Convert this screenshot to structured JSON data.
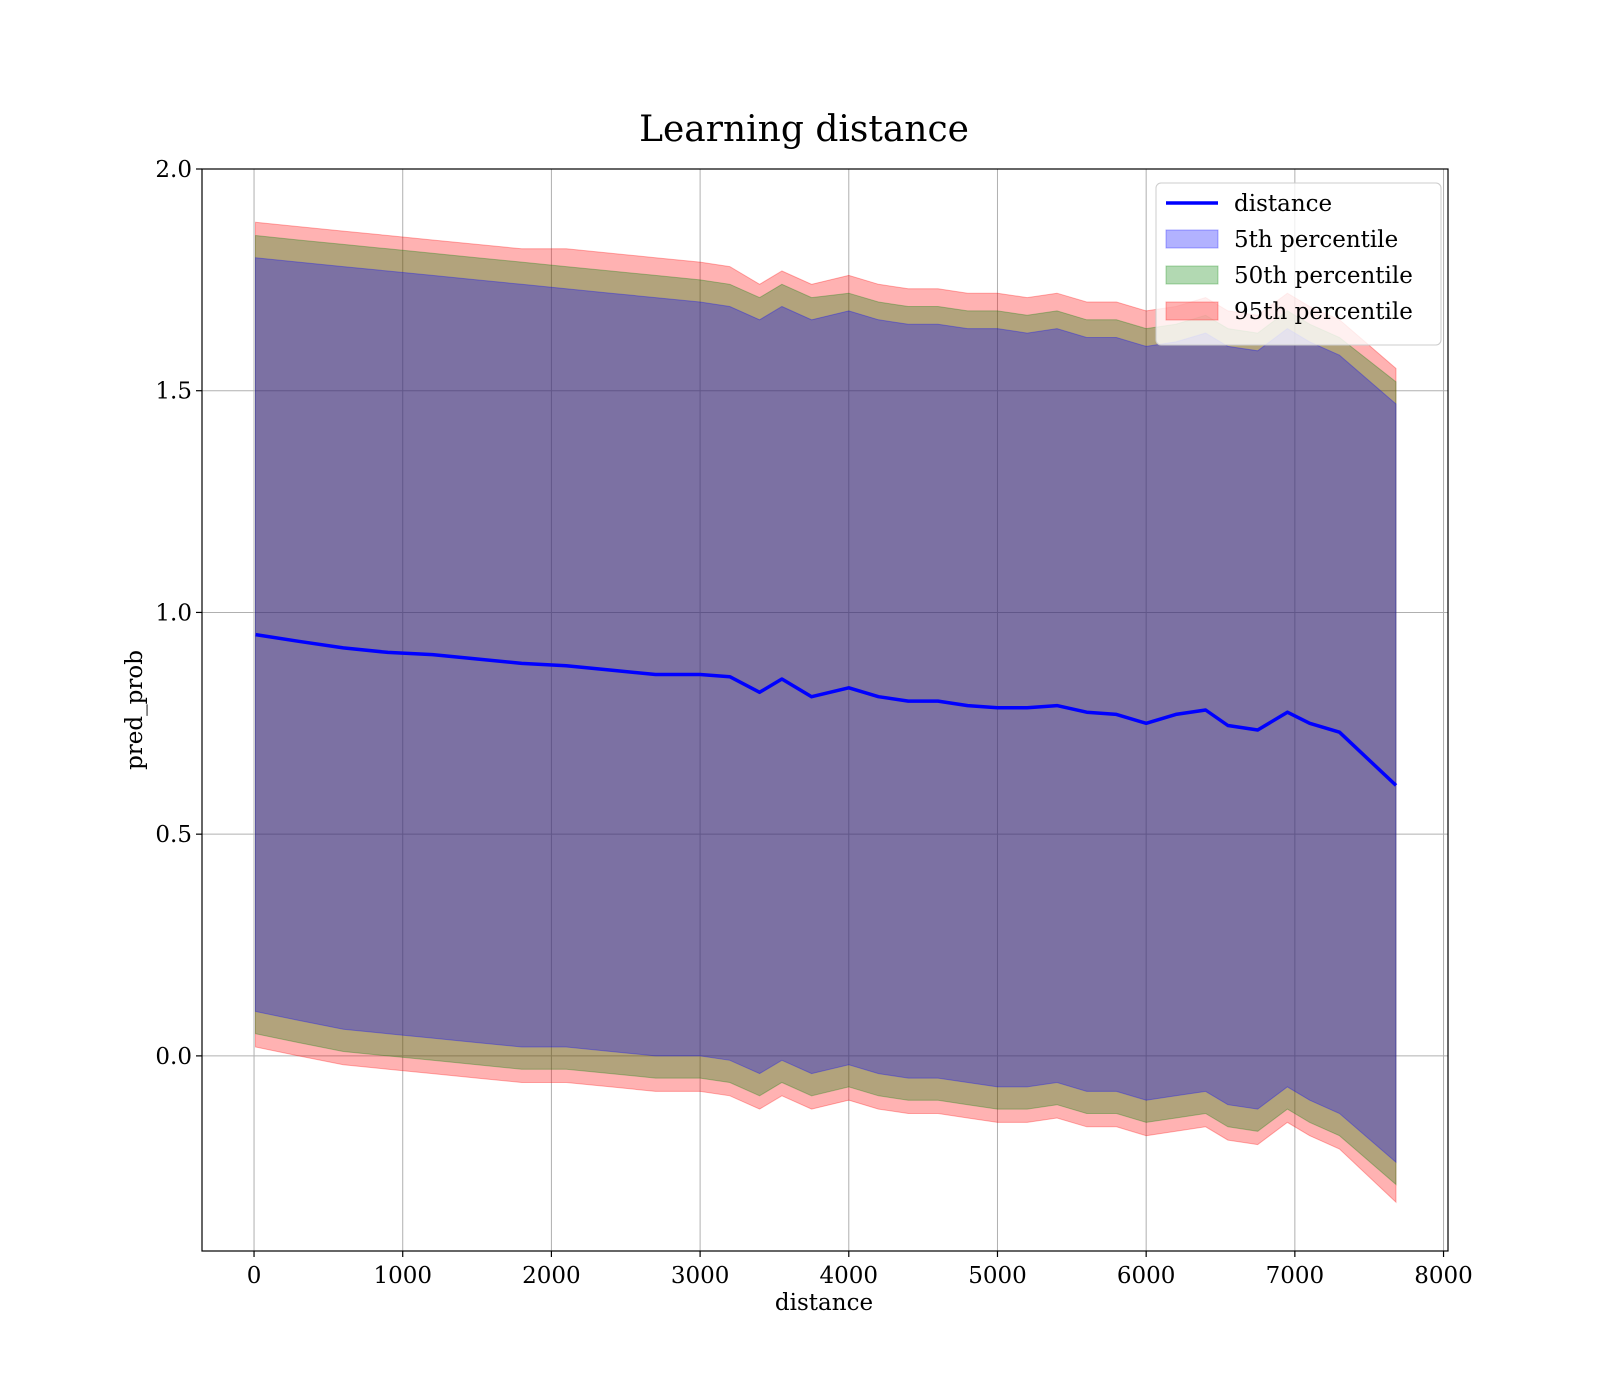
{
  "chart_data": {
    "type": "line",
    "title": "Learning distance",
    "xlabel": "distance",
    "ylabel": "pred_prob",
    "xlim": [
      -350,
      8030
    ],
    "ylim": [
      -0.44,
      2.0
    ],
    "xticks": [
      0,
      1000,
      2000,
      3000,
      4000,
      5000,
      6000,
      7000,
      8000
    ],
    "xtick_labels": [
      "0",
      "1000",
      "2000",
      "3000",
      "4000",
      "5000",
      "6000",
      "7000",
      "8000"
    ],
    "yticks": [
      0.0,
      0.5,
      1.0,
      1.5,
      2.0
    ],
    "ytick_labels": [
      "0.0",
      "0.5",
      "1.0",
      "1.5",
      "2.0"
    ],
    "grid": true,
    "legend_position": "top-right",
    "colors": {
      "line": "#0000ff",
      "band_5": "#0000ff",
      "band_50": "#008000",
      "band_95": "#ff0000"
    },
    "legend": [
      {
        "label": "distance",
        "kind": "line",
        "color": "#0000ff"
      },
      {
        "label": "5th percentile",
        "kind": "patch",
        "color": "#0000ff"
      },
      {
        "label": "50th percentile",
        "kind": "patch",
        "color": "#008000"
      },
      {
        "label": "95th percentile",
        "kind": "patch",
        "color": "#ff0000"
      }
    ],
    "x": [
      10,
      300,
      600,
      900,
      1200,
      1500,
      1800,
      2100,
      2400,
      2700,
      3000,
      3200,
      3400,
      3550,
      3750,
      4000,
      4200,
      4400,
      4600,
      4800,
      5000,
      5200,
      5400,
      5600,
      5800,
      6000,
      6200,
      6400,
      6550,
      6750,
      6950,
      7100,
      7300,
      7680
    ],
    "series": [
      {
        "name": "distance",
        "values": [
          0.95,
          0.935,
          0.92,
          0.91,
          0.905,
          0.895,
          0.885,
          0.88,
          0.87,
          0.86,
          0.86,
          0.855,
          0.82,
          0.85,
          0.81,
          0.83,
          0.81,
          0.8,
          0.8,
          0.79,
          0.785,
          0.785,
          0.79,
          0.775,
          0.77,
          0.75,
          0.77,
          0.78,
          0.745,
          0.735,
          0.775,
          0.75,
          0.73,
          0.61
        ]
      }
    ],
    "bands": [
      {
        "name": "95th percentile",
        "upper": [
          1.88,
          1.87,
          1.86,
          1.85,
          1.84,
          1.83,
          1.82,
          1.82,
          1.81,
          1.8,
          1.79,
          1.78,
          1.74,
          1.77,
          1.74,
          1.76,
          1.74,
          1.73,
          1.73,
          1.72,
          1.72,
          1.71,
          1.72,
          1.7,
          1.7,
          1.68,
          1.69,
          1.71,
          1.68,
          1.67,
          1.72,
          1.69,
          1.66,
          1.55
        ],
        "lower": [
          0.02,
          0.0,
          -0.02,
          -0.03,
          -0.04,
          -0.05,
          -0.06,
          -0.06,
          -0.07,
          -0.08,
          -0.08,
          -0.09,
          -0.12,
          -0.09,
          -0.12,
          -0.1,
          -0.12,
          -0.13,
          -0.13,
          -0.14,
          -0.15,
          -0.15,
          -0.14,
          -0.16,
          -0.16,
          -0.18,
          -0.17,
          -0.16,
          -0.19,
          -0.2,
          -0.15,
          -0.18,
          -0.21,
          -0.33
        ]
      },
      {
        "name": "50th percentile",
        "upper": [
          1.85,
          1.84,
          1.83,
          1.82,
          1.81,
          1.8,
          1.79,
          1.78,
          1.77,
          1.76,
          1.75,
          1.74,
          1.71,
          1.74,
          1.71,
          1.72,
          1.7,
          1.69,
          1.69,
          1.68,
          1.68,
          1.67,
          1.68,
          1.66,
          1.66,
          1.64,
          1.65,
          1.67,
          1.64,
          1.63,
          1.68,
          1.65,
          1.62,
          1.52
        ],
        "lower": [
          0.05,
          0.03,
          0.01,
          0.0,
          -0.01,
          -0.02,
          -0.03,
          -0.03,
          -0.04,
          -0.05,
          -0.05,
          -0.06,
          -0.09,
          -0.06,
          -0.09,
          -0.07,
          -0.09,
          -0.1,
          -0.1,
          -0.11,
          -0.12,
          -0.12,
          -0.11,
          -0.13,
          -0.13,
          -0.15,
          -0.14,
          -0.13,
          -0.16,
          -0.17,
          -0.12,
          -0.15,
          -0.18,
          -0.29
        ]
      },
      {
        "name": "5th percentile",
        "upper": [
          1.8,
          1.79,
          1.78,
          1.77,
          1.76,
          1.75,
          1.74,
          1.73,
          1.72,
          1.71,
          1.7,
          1.69,
          1.66,
          1.69,
          1.66,
          1.68,
          1.66,
          1.65,
          1.65,
          1.64,
          1.64,
          1.63,
          1.64,
          1.62,
          1.62,
          1.6,
          1.61,
          1.63,
          1.6,
          1.59,
          1.64,
          1.61,
          1.58,
          1.47
        ],
        "lower": [
          0.1,
          0.08,
          0.06,
          0.05,
          0.04,
          0.03,
          0.02,
          0.02,
          0.01,
          0.0,
          0.0,
          -0.01,
          -0.04,
          -0.01,
          -0.04,
          -0.02,
          -0.04,
          -0.05,
          -0.05,
          -0.06,
          -0.07,
          -0.07,
          -0.06,
          -0.08,
          -0.08,
          -0.1,
          -0.09,
          -0.08,
          -0.11,
          -0.12,
          -0.07,
          -0.1,
          -0.13,
          -0.24
        ]
      }
    ]
  }
}
